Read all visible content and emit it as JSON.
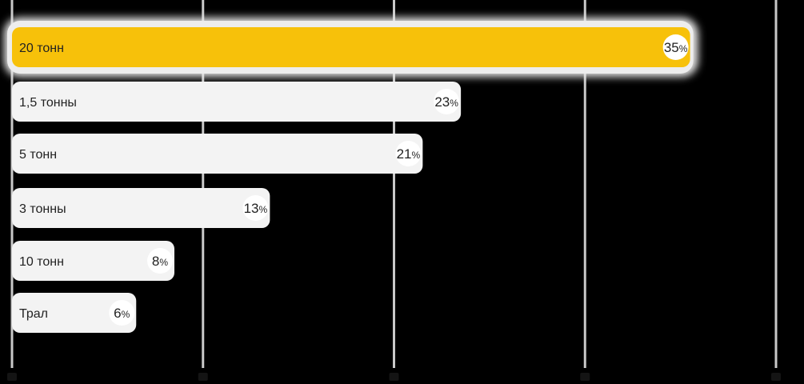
{
  "chart_data": {
    "type": "bar",
    "orientation": "horizontal",
    "categories": [
      "20 тонн",
      "1,5 тонны",
      "5 тонн",
      "3 тонны",
      "10 тонн",
      "Трал"
    ],
    "values": [
      35,
      23,
      21,
      13,
      8,
      6
    ],
    "value_suffix": "%",
    "highlight_index": 0,
    "xlim": [
      0,
      40
    ],
    "x_gridlines": [
      0,
      10,
      20,
      30,
      40
    ],
    "grid": true,
    "title": "",
    "xlabel": "",
    "ylabel": "",
    "colors": {
      "highlight_bar": "#F7C10A",
      "bar": "#F3F3F3",
      "gridline": "#C9C9C9",
      "badge": "#FFFFFF",
      "text": "#222222",
      "background": "#000000"
    }
  }
}
